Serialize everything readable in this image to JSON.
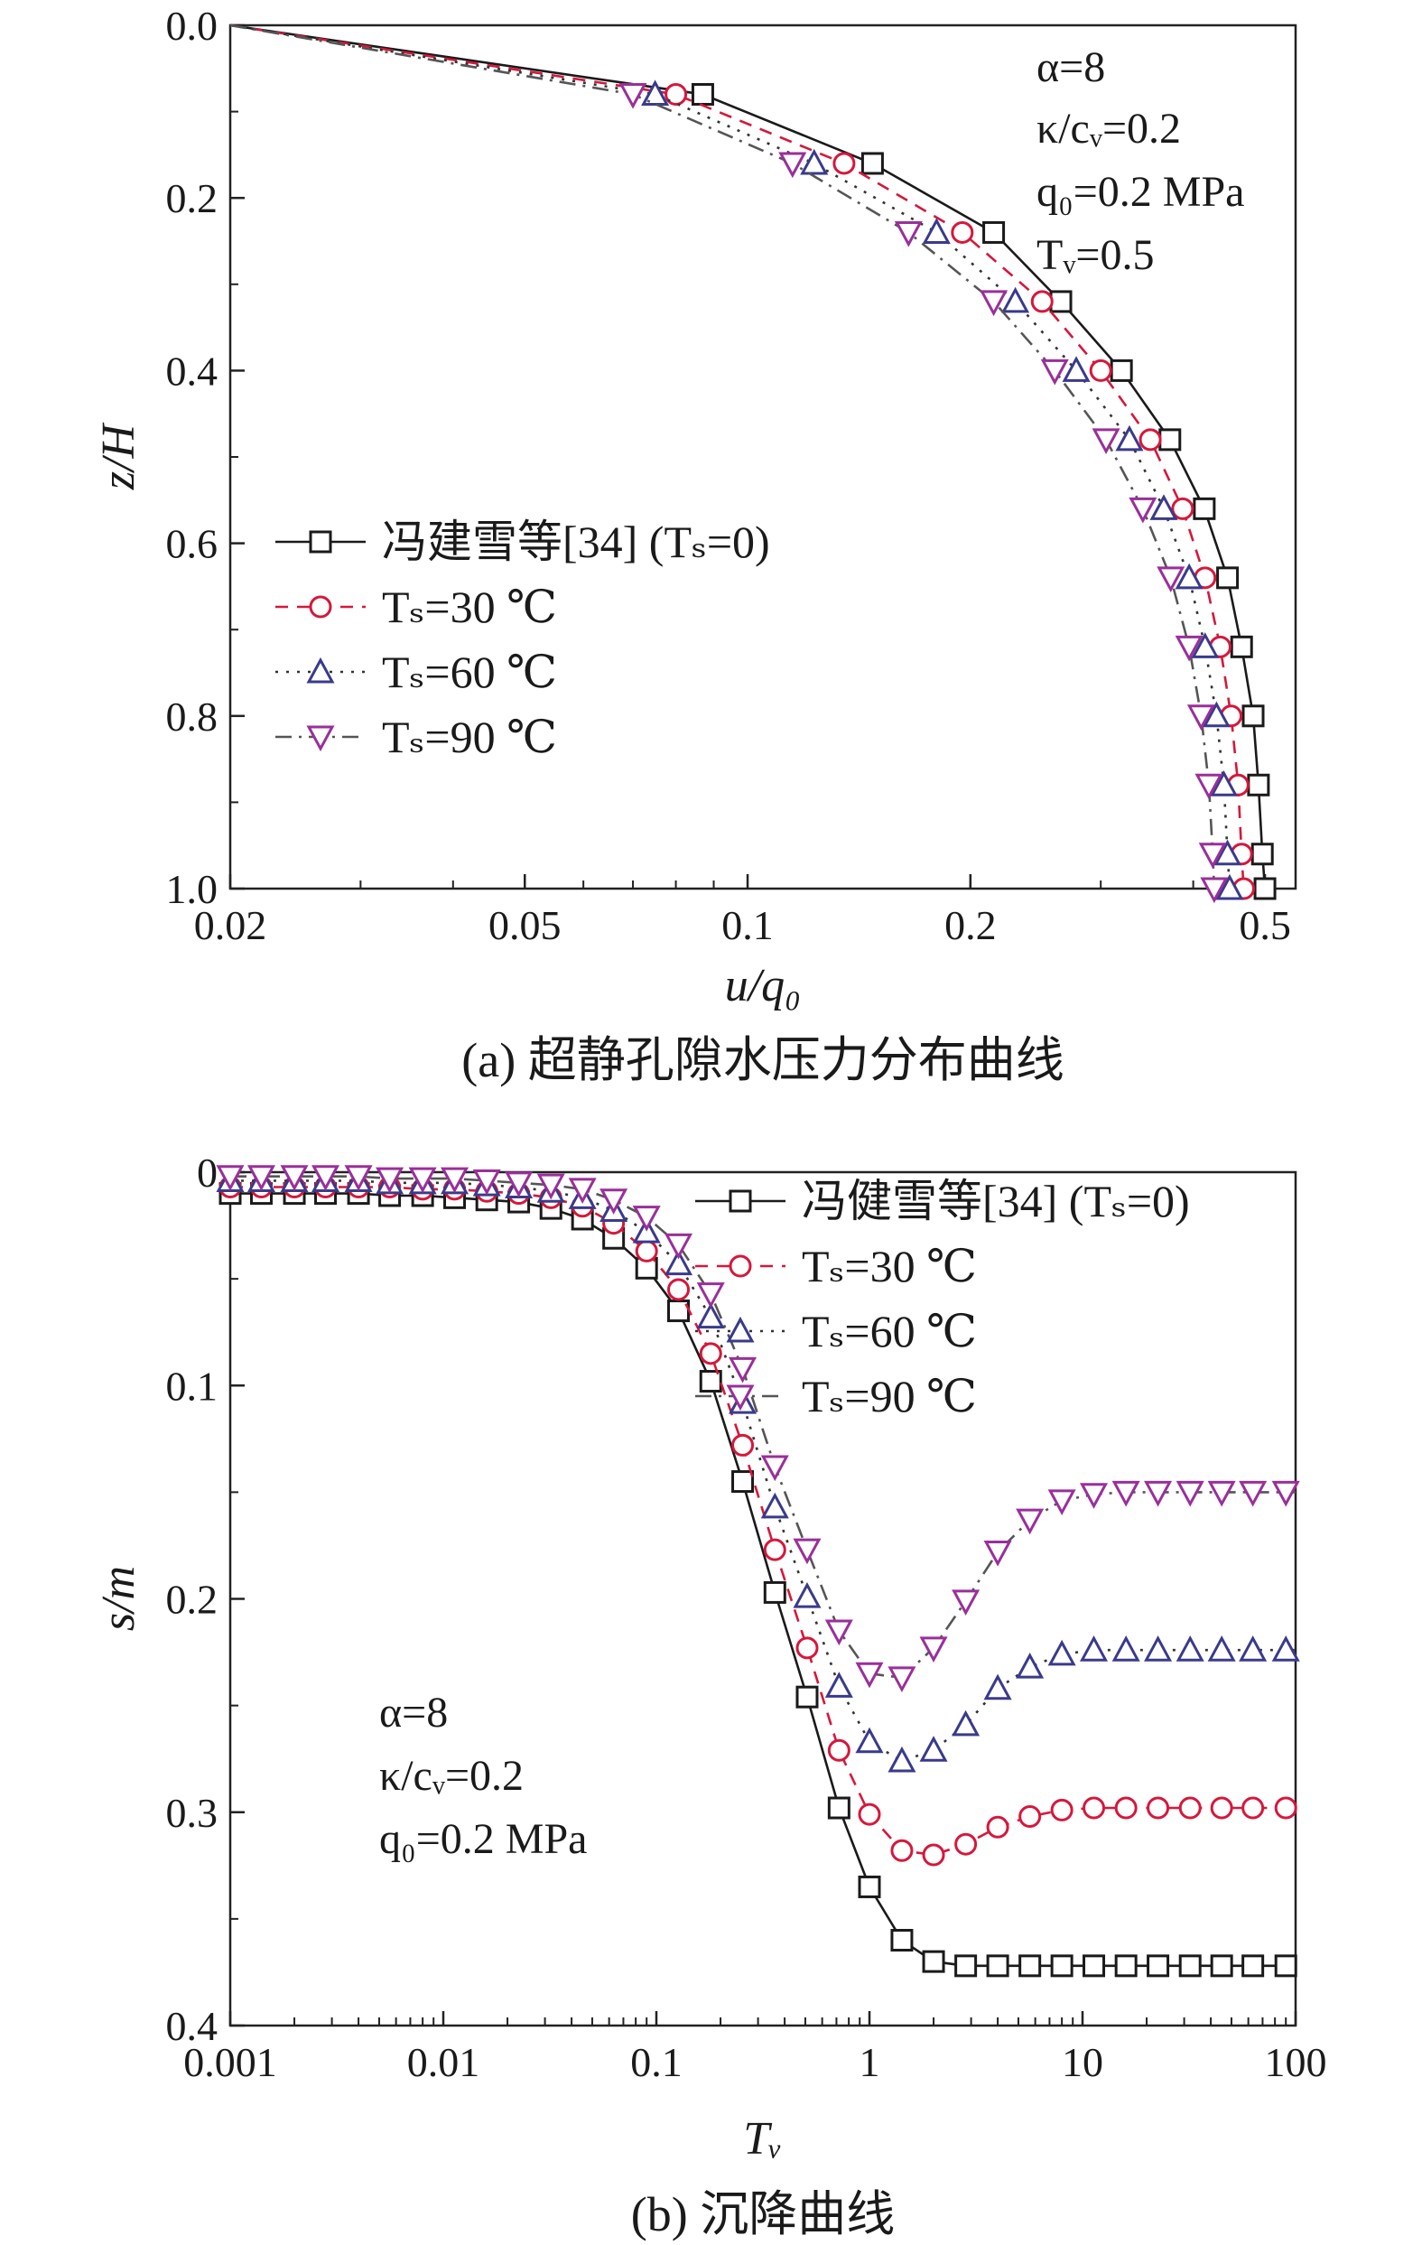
{
  "colors": {
    "ts0": "#1a1a1a",
    "ts30": "#d6173b",
    "ts60": "#3a3a8c",
    "ts90": "#9a2f9a",
    "curve30": "#d6173b",
    "curve60": "#333333",
    "curve90": "#555555"
  },
  "chart_data": [
    {
      "type": "line",
      "panel": "a",
      "caption": "(a) 超静孔隙水压力分布曲线",
      "xlabel": "u/q₀",
      "ylabel": "z/H",
      "xscale": "log",
      "xlim": [
        0.02,
        0.55
      ],
      "ylim": [
        0,
        1.0
      ],
      "y_inverted": true,
      "xticks": [
        "0.02",
        "0.05",
        "0.1",
        "0.2",
        "0.5"
      ],
      "xtick_values": [
        0.02,
        0.05,
        0.1,
        0.2,
        0.5
      ],
      "yticks": [
        "0.0",
        "0.2",
        "0.4",
        "0.6",
        "0.8",
        "1.0"
      ],
      "ytick_values": [
        0,
        0.2,
        0.4,
        0.6,
        0.8,
        1.0
      ],
      "annotations": [
        "α=8",
        "κ/cᵥ=0.2",
        "q₀=0.2 MPa",
        "Tᵥ=0.5"
      ],
      "series": [
        {
          "name": "冯建雪等[34] (Tₛ=0)",
          "key": "ts0",
          "marker": "square",
          "dash": "none",
          "x": [
            0.02,
            0.087,
            0.1475,
            0.215,
            0.265,
            0.32,
            0.372,
            0.414,
            0.445,
            0.465,
            0.482,
            0.49,
            0.496,
            0.5
          ],
          "y": [
            0.0,
            0.08,
            0.16,
            0.24,
            0.32,
            0.4,
            0.48,
            0.56,
            0.64,
            0.72,
            0.8,
            0.88,
            0.96,
            1.0
          ]
        },
        {
          "name": "Tₛ=30 ℃",
          "key": "ts30",
          "marker": "circle",
          "dash": "14,10",
          "x": [
            0.02,
            0.08,
            0.135,
            0.195,
            0.25,
            0.3,
            0.35,
            0.387,
            0.415,
            0.435,
            0.45,
            0.46,
            0.465,
            0.468
          ],
          "y": [
            0.0,
            0.08,
            0.16,
            0.24,
            0.32,
            0.4,
            0.48,
            0.56,
            0.64,
            0.72,
            0.8,
            0.88,
            0.96,
            1.0
          ]
        },
        {
          "name": "Tₛ=60 ℃",
          "key": "ts60",
          "marker": "triangle-up",
          "dash": "3,9",
          "x": [
            0.02,
            0.075,
            0.123,
            0.18,
            0.23,
            0.278,
            0.328,
            0.365,
            0.395,
            0.415,
            0.43,
            0.44,
            0.445,
            0.448
          ],
          "y": [
            0.0,
            0.08,
            0.16,
            0.24,
            0.32,
            0.4,
            0.48,
            0.56,
            0.64,
            0.72,
            0.8,
            0.88,
            0.96,
            1.0
          ]
        },
        {
          "name": "Tₛ=90 ℃",
          "key": "ts90",
          "marker": "triangle-down",
          "dash": "18,8,3,8",
          "x": [
            0.02,
            0.07,
            0.115,
            0.165,
            0.215,
            0.26,
            0.305,
            0.342,
            0.373,
            0.395,
            0.41,
            0.42,
            0.425,
            0.427
          ],
          "y": [
            0.0,
            0.08,
            0.16,
            0.24,
            0.32,
            0.4,
            0.48,
            0.56,
            0.64,
            0.72,
            0.8,
            0.88,
            0.96,
            1.0
          ]
        }
      ]
    },
    {
      "type": "line",
      "panel": "b",
      "caption": "(b)  沉降曲线",
      "xlabel": "Tᵥ",
      "ylabel": "s/m",
      "xscale": "log",
      "xlim": [
        0.001,
        100
      ],
      "ylim": [
        0,
        0.4
      ],
      "y_inverted": true,
      "xticks": [
        "0.001",
        "0.01",
        "0.1",
        "1",
        "10",
        "100"
      ],
      "xtick_values": [
        0.001,
        0.01,
        0.1,
        1,
        10,
        100
      ],
      "yticks": [
        "0",
        "0.1",
        "0.2",
        "0.3",
        "0.4"
      ],
      "ytick_values": [
        0,
        0.1,
        0.2,
        0.3,
        0.4
      ],
      "annotations": [
        "α=8",
        "κ/cᵥ=0.2",
        "q₀=0.2 MPa"
      ],
      "series": [
        {
          "name": "冯健雪等[34] (Tₛ=0)",
          "key": "ts0",
          "marker": "square",
          "dash": "none",
          "x": [
            0.001,
            0.0014,
            0.002,
            0.0028,
            0.004,
            0.0056,
            0.008,
            0.0113,
            0.016,
            0.0226,
            0.032,
            0.045,
            0.063,
            0.09,
            0.127,
            0.18,
            0.254,
            0.36,
            0.51,
            0.72,
            1.0,
            1.42,
            2.0,
            2.83,
            4.0,
            5.66,
            8.0,
            11.3,
            16.0,
            22.6,
            32.0,
            45.0,
            63.0,
            90.0,
            100.0
          ],
          "y": [
            0.01,
            0.01,
            0.01,
            0.01,
            0.01,
            0.011,
            0.011,
            0.012,
            0.013,
            0.014,
            0.017,
            0.022,
            0.031,
            0.045,
            0.065,
            0.098,
            0.145,
            0.197,
            0.246,
            0.298,
            0.335,
            0.36,
            0.37,
            0.372,
            0.372,
            0.372,
            0.372,
            0.372,
            0.372,
            0.372,
            0.372,
            0.372,
            0.372,
            0.372,
            0.372
          ]
        },
        {
          "name": "Tₛ=30 ℃",
          "key": "ts30",
          "marker": "circle",
          "dash": "14,10",
          "x": [
            0.001,
            0.0014,
            0.002,
            0.0028,
            0.004,
            0.0056,
            0.008,
            0.0113,
            0.016,
            0.0226,
            0.032,
            0.045,
            0.063,
            0.09,
            0.127,
            0.18,
            0.254,
            0.36,
            0.51,
            0.72,
            1.0,
            1.42,
            2.0,
            2.83,
            4.0,
            5.66,
            8.0,
            11.3,
            16.0,
            22.6,
            32.0,
            45.0,
            63.0,
            90.0,
            100.0
          ],
          "y": [
            0.007,
            0.007,
            0.007,
            0.007,
            0.007,
            0.007,
            0.008,
            0.008,
            0.009,
            0.01,
            0.012,
            0.016,
            0.024,
            0.037,
            0.055,
            0.085,
            0.128,
            0.177,
            0.223,
            0.271,
            0.301,
            0.318,
            0.32,
            0.315,
            0.307,
            0.302,
            0.299,
            0.298,
            0.298,
            0.298,
            0.298,
            0.298,
            0.298,
            0.298,
            0.298
          ]
        },
        {
          "name": "Tₛ=60 ℃",
          "key": "ts60",
          "marker": "triangle-up",
          "dash": "3,9",
          "x": [
            0.001,
            0.0014,
            0.002,
            0.0028,
            0.004,
            0.0056,
            0.008,
            0.0113,
            0.016,
            0.0226,
            0.032,
            0.045,
            0.063,
            0.09,
            0.127,
            0.18,
            0.254,
            0.36,
            0.51,
            0.72,
            1.0,
            1.42,
            2.0,
            2.83,
            4.0,
            5.66,
            8.0,
            11.3,
            16.0,
            22.6,
            32.0,
            45.0,
            63.0,
            90.0,
            100.0
          ],
          "y": [
            0.004,
            0.004,
            0.004,
            0.004,
            0.004,
            0.005,
            0.005,
            0.005,
            0.006,
            0.007,
            0.009,
            0.012,
            0.018,
            0.028,
            0.043,
            0.068,
            0.108,
            0.157,
            0.199,
            0.241,
            0.267,
            0.276,
            0.271,
            0.259,
            0.242,
            0.232,
            0.226,
            0.224,
            0.224,
            0.224,
            0.224,
            0.224,
            0.224,
            0.224,
            0.224
          ]
        },
        {
          "name": "Tₛ=90 ℃",
          "key": "ts90",
          "marker": "triangle-down",
          "dash": "18,8,3,8",
          "x": [
            0.001,
            0.0014,
            0.002,
            0.0028,
            0.004,
            0.0056,
            0.008,
            0.0113,
            0.016,
            0.0226,
            0.032,
            0.045,
            0.063,
            0.09,
            0.127,
            0.18,
            0.254,
            0.36,
            0.51,
            0.72,
            1.0,
            1.42,
            2.0,
            2.83,
            4.0,
            5.66,
            8.0,
            11.3,
            16.0,
            22.6,
            32.0,
            45.0,
            63.0,
            90.0,
            100.0
          ],
          "y": [
            0.002,
            0.002,
            0.002,
            0.002,
            0.002,
            0.003,
            0.003,
            0.003,
            0.004,
            0.005,
            0.006,
            0.008,
            0.013,
            0.021,
            0.034,
            0.057,
            0.092,
            0.138,
            0.177,
            0.215,
            0.235,
            0.237,
            0.223,
            0.201,
            0.178,
            0.163,
            0.154,
            0.151,
            0.15,
            0.15,
            0.15,
            0.15,
            0.15,
            0.15,
            0.15
          ]
        }
      ]
    }
  ]
}
